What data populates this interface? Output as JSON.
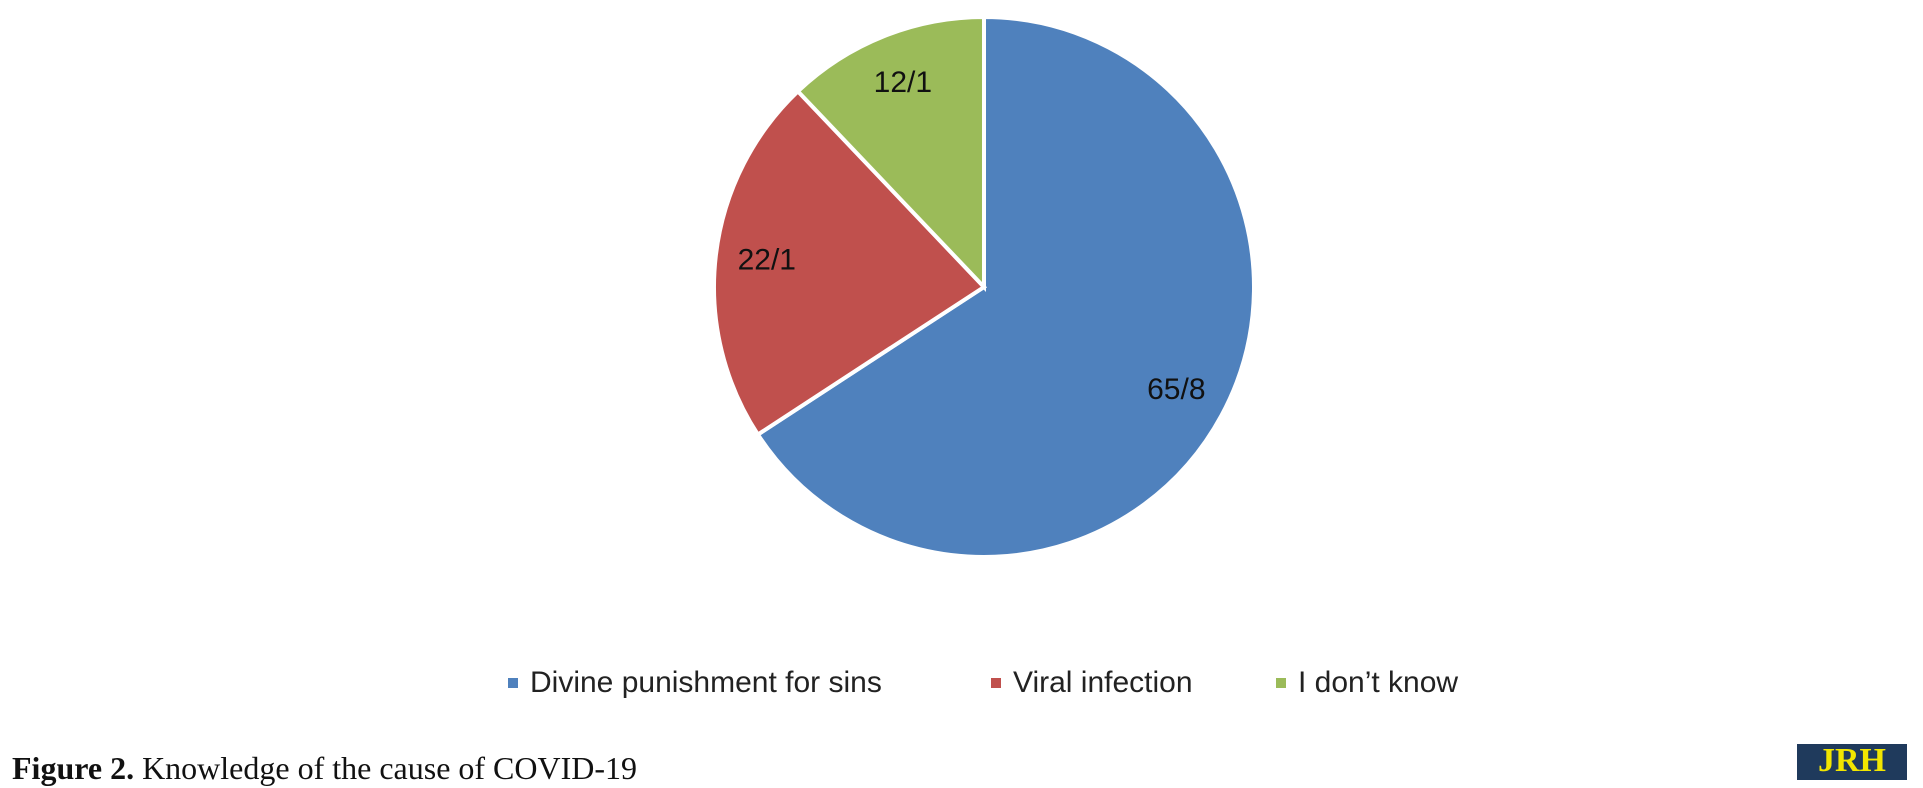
{
  "chart_data": {
    "type": "pie",
    "categories": [
      "Divine punishment for sins",
      "Viral infection",
      "I don’t know"
    ],
    "values": [
      65.8,
      22.1,
      12.1
    ],
    "value_labels": [
      "65/8",
      "22/1",
      "12/1"
    ],
    "colors": [
      "#4f81bd",
      "#c0504d",
      "#9bbb59"
    ]
  },
  "caption": {
    "label": "Figure 2.",
    "text": "Knowledge of the cause of COVID-19"
  },
  "logo": "JRH"
}
